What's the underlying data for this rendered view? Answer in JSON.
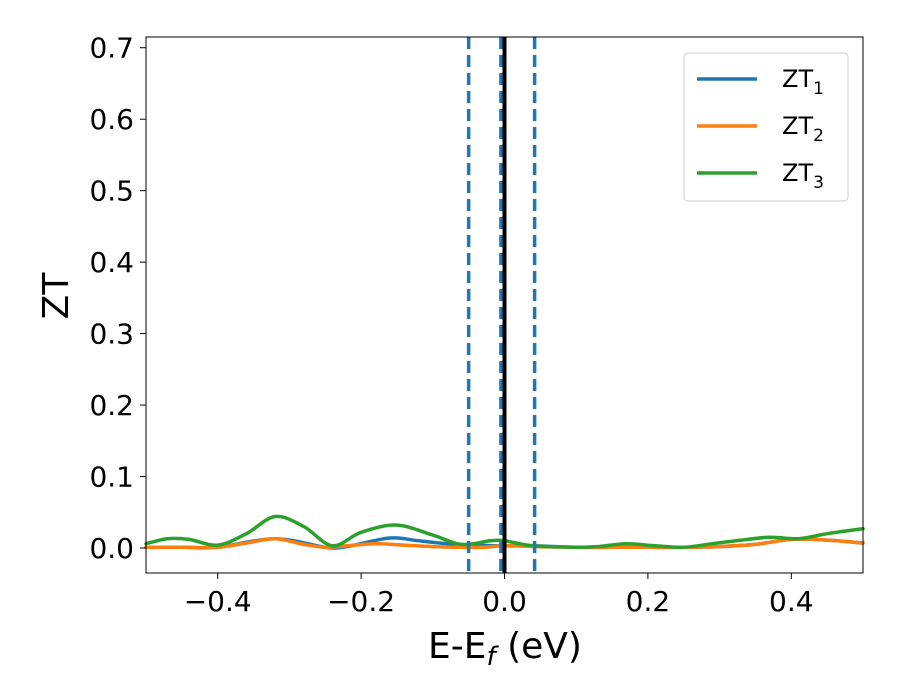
{
  "chart_data": {
    "type": "line",
    "xlabel_main": "E-E",
    "xlabel_sub": "f",
    "xlabel_tail": " (eV)",
    "ylabel": "ZT",
    "xlim": [
      -0.5,
      0.5
    ],
    "ylim": [
      -0.035,
      0.715
    ],
    "xticks": [
      -0.4,
      -0.2,
      0.0,
      0.2,
      0.4
    ],
    "xtick_labels": [
      "−0.4",
      "−0.2",
      "0.0",
      "0.2",
      "0.4"
    ],
    "yticks": [
      0.0,
      0.1,
      0.2,
      0.3,
      0.4,
      0.5,
      0.6,
      0.7
    ],
    "ytick_labels": [
      "0.0",
      "0.1",
      "0.2",
      "0.3",
      "0.4",
      "0.5",
      "0.6",
      "0.7"
    ],
    "grid": false,
    "legend_position": "top-right",
    "vlines": [
      {
        "x": -0.05,
        "style": "dashed",
        "color": "#1f77b4"
      },
      {
        "x": -0.005,
        "style": "dashed",
        "color": "#1f77b4"
      },
      {
        "x": 0.042,
        "style": "dashed",
        "color": "#1f77b4"
      },
      {
        "x": 0.0,
        "style": "solid",
        "color": "#000000"
      }
    ],
    "series": [
      {
        "name": "ZT",
        "sub": "1",
        "color": "#1f77b4",
        "x": [
          -0.5,
          -0.45,
          -0.4,
          -0.32,
          -0.25,
          -0.22,
          -0.16,
          -0.12,
          -0.08,
          -0.04,
          0.0,
          0.04,
          0.1,
          0.15,
          0.2,
          0.25,
          0.3,
          0.35,
          0.4,
          0.45,
          0.5
        ],
        "y": [
          0.001,
          0.001,
          0.001,
          0.013,
          0.001,
          0.002,
          0.014,
          0.01,
          0.006,
          0.004,
          0.003,
          0.003,
          0.001,
          0.001,
          0.001,
          0.001,
          0.002,
          0.005,
          0.012,
          0.011,
          0.007
        ]
      },
      {
        "name": "ZT",
        "sub": "2",
        "color": "#ff7f0e",
        "x": [
          -0.5,
          -0.45,
          -0.4,
          -0.36,
          -0.32,
          -0.28,
          -0.25,
          -0.22,
          -0.18,
          -0.14,
          -0.1,
          -0.06,
          -0.03,
          0.0,
          0.04,
          0.1,
          0.15,
          0.2,
          0.25,
          0.3,
          0.35,
          0.4,
          0.45,
          0.5
        ],
        "y": [
          0.001,
          0.001,
          0.001,
          0.007,
          0.013,
          0.005,
          0.001,
          0.003,
          0.006,
          0.004,
          0.002,
          0.001,
          0.001,
          0.003,
          0.002,
          0.001,
          0.001,
          0.001,
          0.001,
          0.002,
          0.005,
          0.012,
          0.011,
          0.007
        ]
      },
      {
        "name": "ZT",
        "sub": "3",
        "color": "#2ca02c",
        "x": [
          -0.5,
          -0.47,
          -0.44,
          -0.4,
          -0.36,
          -0.32,
          -0.28,
          -0.24,
          -0.2,
          -0.15,
          -0.1,
          -0.06,
          -0.02,
          0.0,
          0.04,
          0.1,
          0.13,
          0.17,
          0.21,
          0.25,
          0.29,
          0.33,
          0.37,
          0.41,
          0.45,
          0.5
        ],
        "y": [
          0.006,
          0.013,
          0.012,
          0.004,
          0.02,
          0.044,
          0.03,
          0.003,
          0.022,
          0.032,
          0.018,
          0.005,
          0.01,
          0.01,
          0.003,
          0.001,
          0.002,
          0.006,
          0.003,
          0.001,
          0.006,
          0.011,
          0.015,
          0.013,
          0.02,
          0.027
        ]
      }
    ]
  }
}
